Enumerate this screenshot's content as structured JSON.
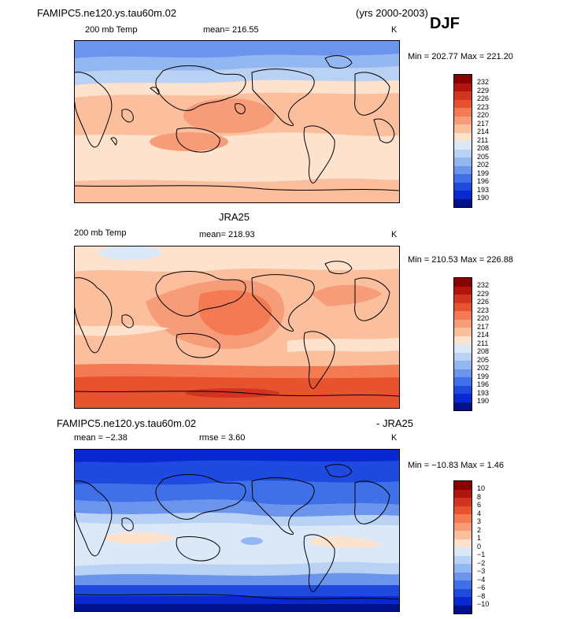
{
  "header": {
    "case_name": "FAMIPC5.ne120.ys.tau60m.02",
    "years": "(yrs 2000-2003)",
    "season": "DJF"
  },
  "panels": [
    {
      "title": "",
      "variable": "200 mb Temp",
      "mean_text": "mean= 216.55",
      "unit": "K",
      "minmax": "Min = 202.77 Max = 221.20",
      "levels": [
        "232",
        "229",
        "226",
        "223",
        "220",
        "217",
        "214",
        "211",
        "208",
        "205",
        "202",
        "199",
        "196",
        "193",
        "190"
      ]
    },
    {
      "title": "JRA25",
      "variable": "200 mb Temp",
      "mean_text": "mean= 218.93",
      "unit": "K",
      "minmax": "Min = 210.53 Max = 226.88",
      "levels": [
        "232",
        "229",
        "226",
        "223",
        "220",
        "217",
        "214",
        "211",
        "208",
        "205",
        "202",
        "199",
        "196",
        "193",
        "190"
      ]
    },
    {
      "title_left": "FAMIPC5.ne120.ys.tau60m.02",
      "title_right": "- JRA25",
      "mean_text": "mean =  −2.38",
      "rmse_text": "rmse =    3.60",
      "unit": "K",
      "minmax": "Min = −10.83 Max =   1.46",
      "levels": [
        "10",
        "8",
        "6",
        "4",
        "3",
        "2",
        "1",
        "0",
        "−1",
        "−2",
        "−3",
        "−4",
        "−6",
        "−8",
        "−10"
      ]
    }
  ],
  "colors": {
    "scale": [
      "#8b0000",
      "#b2150d",
      "#d2341f",
      "#e8532f",
      "#f37a52",
      "#f79c79",
      "#fbbf9e",
      "#fde2cd",
      "#dbe8f7",
      "#b9d1f3",
      "#93b7f0",
      "#6b95ec",
      "#4070e8",
      "#1f4ae0",
      "#0828d2",
      "#00118a"
    ]
  }
}
